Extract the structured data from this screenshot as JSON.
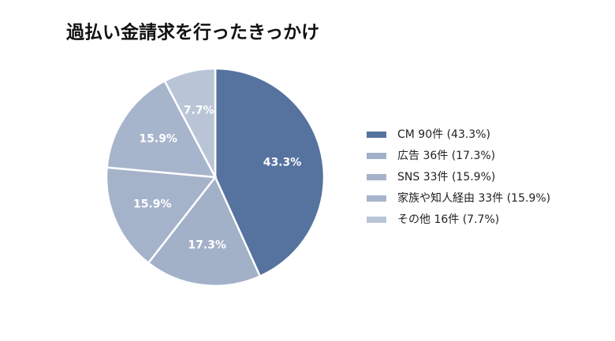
{
  "chart_data": {
    "type": "pie",
    "title": "過払い金請求を行ったきっかけ",
    "categories": [
      "CM 90件 (43.3%)",
      "広告 36件 (17.3%)",
      "SNS 33件 (15.9%)",
      "家族や知人経由 33件 (15.9%)",
      "その他 16件 (7.7%)"
    ],
    "values": [
      43.3,
      17.3,
      15.9,
      15.9,
      7.7
    ],
    "value_labels": [
      "43.3%",
      "17.3%",
      "15.9%",
      "15.9%",
      "7.7%"
    ],
    "colors": [
      "#56739f",
      "#a2b0c8",
      "#a5b3ca",
      "#a7b5cc",
      "#b9c5d7"
    ],
    "legend": "right"
  }
}
